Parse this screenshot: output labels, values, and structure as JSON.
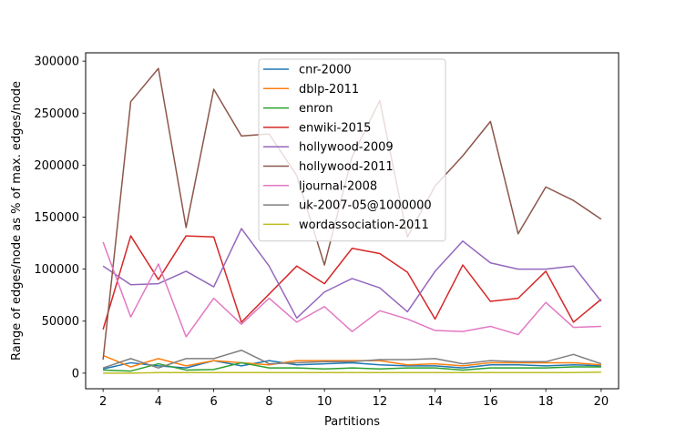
{
  "chart_data": {
    "type": "line",
    "title": "",
    "xlabel": "Partitions",
    "ylabel": "Range of edges/node as % of max. edges/node",
    "xlim": [
      1.37,
      20.63
    ],
    "ylim": [
      -15000,
      308000
    ],
    "xticks": [
      "2",
      "4",
      "6",
      "8",
      "10",
      "12",
      "14",
      "16",
      "18",
      "20"
    ],
    "yticks": [
      "0",
      "50000",
      "100000",
      "150000",
      "200000",
      "250000",
      "300000"
    ],
    "x": [
      2,
      3,
      4,
      5,
      6,
      7,
      8,
      9,
      10,
      11,
      12,
      13,
      14,
      15,
      16,
      17,
      18,
      19,
      20
    ],
    "legend_position": "upper center",
    "grid": false,
    "series": [
      {
        "name": "cnr-2000",
        "color": "#1f77b4",
        "values": [
          4000,
          10000,
          7000,
          5000,
          12000,
          7000,
          12000,
          8000,
          9000,
          10000,
          8000,
          7000,
          7000,
          5000,
          8000,
          8000,
          7000,
          8000,
          7000
        ]
      },
      {
        "name": "dblp-2011",
        "color": "#ff7f0e",
        "values": [
          17000,
          6000,
          14000,
          7000,
          12000,
          10000,
          8000,
          12000,
          12000,
          12000,
          12000,
          8000,
          9000,
          7000,
          10000,
          10000,
          10000,
          10000,
          8000
        ]
      },
      {
        "name": "enron",
        "color": "#2ca02c",
        "values": [
          3000,
          2000,
          9000,
          3000,
          3500,
          10000,
          5000,
          5000,
          4000,
          5000,
          4000,
          5000,
          5000,
          3000,
          5000,
          5000,
          5000,
          6000,
          6000
        ]
      },
      {
        "name": "enwiki-2015",
        "color": "#d62728",
        "values": [
          42000,
          132000,
          90000,
          132000,
          131000,
          49000,
          76000,
          103000,
          86000,
          120000,
          115000,
          97000,
          52000,
          104000,
          69000,
          72000,
          98000,
          49000,
          71000
        ]
      },
      {
        "name": "hollywood-2009",
        "color": "#9467bd",
        "values": [
          103000,
          85000,
          86000,
          98000,
          83000,
          139000,
          103000,
          53000,
          78000,
          91000,
          82000,
          59000,
          98000,
          127000,
          106000,
          100000,
          100000,
          103000,
          69000
        ]
      },
      {
        "name": "hollywood-2011",
        "color": "#8c564b",
        "values": [
          13000,
          261000,
          293000,
          140000,
          273000,
          228000,
          230000,
          190000,
          104000,
          208000,
          262000,
          131000,
          180000,
          209000,
          242000,
          134000,
          179000,
          166000,
          148000
        ]
      },
      {
        "name": "ljournal-2008",
        "color": "#e377c2",
        "values": [
          126000,
          54000,
          105000,
          35000,
          72000,
          47000,
          72000,
          49000,
          64000,
          40000,
          60000,
          52000,
          41000,
          40000,
          45000,
          37000,
          68000,
          44000,
          45000
        ]
      },
      {
        "name": "uk-2007-05@1000000",
        "color": "#7f7f7f",
        "values": [
          5000,
          14000,
          5000,
          14000,
          14000,
          22000,
          9000,
          10000,
          11000,
          11000,
          13000,
          13000,
          14000,
          9000,
          12000,
          11000,
          11000,
          18000,
          9000
        ]
      },
      {
        "name": "wordassociation-2011",
        "color": "#bcbd22",
        "values": [
          0,
          0,
          500,
          500,
          500,
          500,
          500,
          500,
          500,
          500,
          500,
          500,
          500,
          500,
          500,
          500,
          500,
          500,
          1000
        ]
      }
    ]
  }
}
